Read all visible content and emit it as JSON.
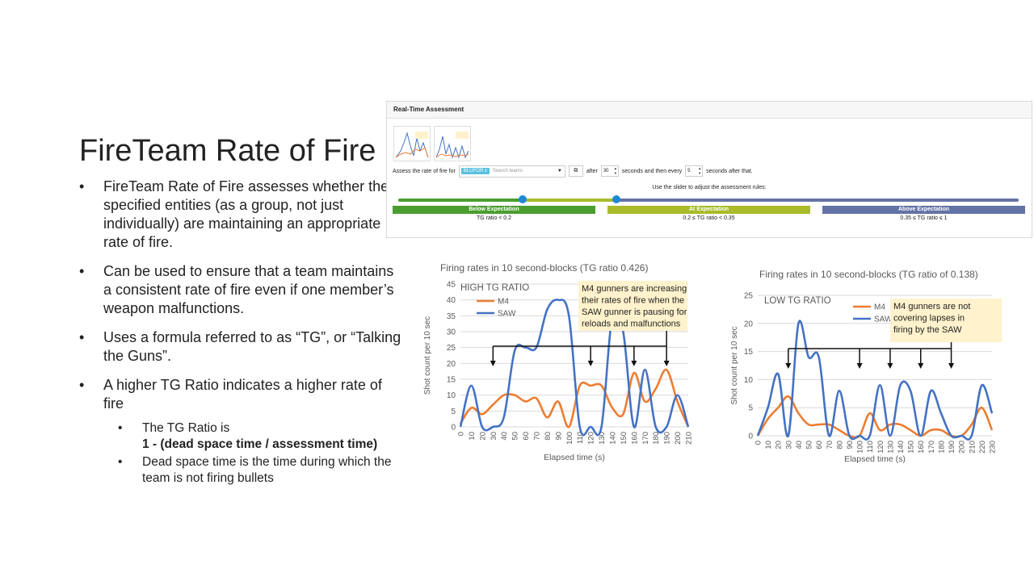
{
  "slide": {
    "title": "FireTeam Rate of Fire",
    "bullets": [
      "FireTeam Rate of Fire assesses whether the specified entities (as a group, not just individually) are maintaining an appropriate rate of fire.",
      "Can be used to ensure that a team maintains a consistent rate of fire even if one member’s weapon malfunctions.",
      "Uses a formula referred to as “TG”, or “Talking the Guns”.",
      "A higher TG Ratio indicates a higher rate of fire"
    ],
    "sub_bullets": {
      "tg_ratio_intro": "The TG Ratio is",
      "tg_ratio_formula": "1 - (dead space time / assessment time)",
      "dead_space": "Dead space time is the time during which the team is not firing bullets"
    },
    "bullet_symbol": "•"
  },
  "panel": {
    "header": "Real-Time Assessment",
    "assess_label": "Assess the rate of fire for",
    "team_chip": "BLUFOR",
    "chip_close": "x",
    "search_placeholder": "Search teams",
    "after_label": "after",
    "after_value": "30",
    "then_label": "seconds and then every",
    "every_value": "5",
    "after_that_label": "seconds after that.",
    "slider_hint": "Use the slider to adjust the assessment rules:",
    "bands": [
      {
        "label": "Below Expectation",
        "rule": "TG ratio < 0.2",
        "color": "#4a9e2f"
      },
      {
        "label": "At Expectation",
        "rule": "0.2 ≤ TG ratio < 0.35",
        "color": "#a9bb2a"
      },
      {
        "label": "Above Expectation",
        "rule": "0.35 ≤ TG ratio ≤ 1",
        "color": "#6473a6"
      }
    ],
    "slider_values": [
      0.2,
      0.35
    ]
  },
  "chart_data": [
    {
      "type": "line",
      "title": "Firing rates in 10 second-blocks (TG ratio 0.426)",
      "xlabel": "Elapsed time (s)",
      "ylabel": "Shot count per 10 sec",
      "ylim": [
        0,
        45
      ],
      "yticks": [
        0,
        5,
        10,
        15,
        20,
        25,
        30,
        35,
        40,
        45
      ],
      "x": [
        0,
        10,
        20,
        30,
        40,
        50,
        60,
        70,
        80,
        90,
        100,
        110,
        120,
        130,
        140,
        150,
        160,
        170,
        180,
        190,
        200,
        210
      ],
      "series": [
        {
          "name": "M4",
          "color": "#ed7d31",
          "values": [
            1,
            6,
            4,
            7,
            10,
            10,
            8,
            9,
            3,
            8,
            0,
            13,
            13,
            13,
            6,
            4,
            17,
            8,
            12,
            18,
            8,
            0
          ]
        },
        {
          "name": "SAW",
          "color": "#4472c4",
          "values": [
            0,
            13,
            0,
            0,
            3,
            24,
            25,
            25,
            37,
            40,
            35,
            0,
            0,
            0,
            35,
            30,
            0,
            18,
            0,
            0,
            10,
            0
          ]
        }
      ],
      "corner_label": "HIGH TG RATIO",
      "annotation": "M4 gunners are increasing their rates of fire when the SAW gunner is pausing for reloads and malfunctions"
    },
    {
      "type": "line",
      "title": "Firing rates in 10 second-blocks (TG ratio of 0.138)",
      "xlabel": "Elapsed time (s)",
      "ylabel": "Shot count per 10 sec",
      "ylim": [
        0,
        25
      ],
      "yticks": [
        0,
        5,
        10,
        15,
        20,
        25
      ],
      "x": [
        0,
        10,
        20,
        30,
        40,
        50,
        60,
        70,
        80,
        90,
        100,
        110,
        120,
        130,
        140,
        150,
        160,
        170,
        180,
        190,
        200,
        210,
        220,
        230
      ],
      "series": [
        {
          "name": "M4",
          "color": "#ed7d31",
          "values": [
            0,
            3,
            5,
            7,
            4,
            2,
            2,
            2,
            1,
            0,
            0,
            4,
            1,
            2,
            2,
            1,
            0,
            1,
            1,
            0,
            0,
            2,
            5,
            1
          ]
        },
        {
          "name": "SAW",
          "color": "#4472c4",
          "values": [
            0,
            5,
            11,
            0,
            20,
            14,
            14,
            0,
            8,
            0,
            0,
            0,
            9,
            0,
            9,
            8,
            0,
            8,
            4,
            0,
            0,
            0,
            9,
            4
          ]
        }
      ],
      "corner_label": "LOW TG RATIO",
      "annotation": "M4 gunners are not covering lapses in firing by the SAW"
    }
  ]
}
